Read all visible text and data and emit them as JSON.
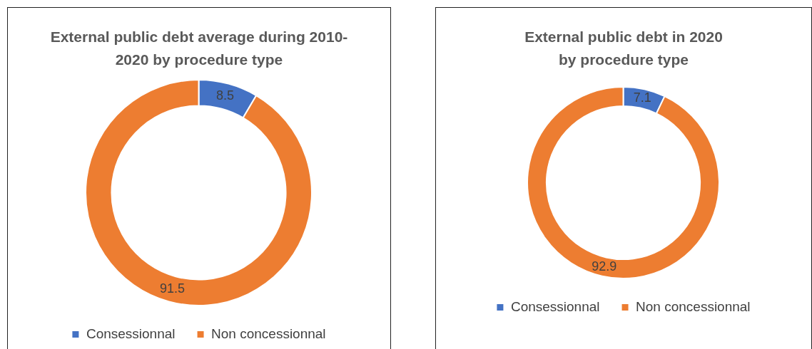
{
  "chart_data": [
    {
      "type": "donut",
      "title": "External public debt average during 2010-2020 by procedure type",
      "categories": [
        "Consessionnal",
        "Non concessionnal"
      ],
      "values": [
        8.5,
        91.5
      ],
      "colors": [
        "#4472c4",
        "#ed7d31"
      ],
      "data_labels": true,
      "legend": "bottom"
    },
    {
      "type": "donut",
      "title": "External public debt in 2020 by procedure type",
      "categories": [
        "Consessionnal",
        "Non concessionnal"
      ],
      "values": [
        7.1,
        92.9
      ],
      "colors": [
        "#4472c4",
        "#ed7d31"
      ],
      "data_labels": true,
      "legend": "bottom"
    }
  ]
}
